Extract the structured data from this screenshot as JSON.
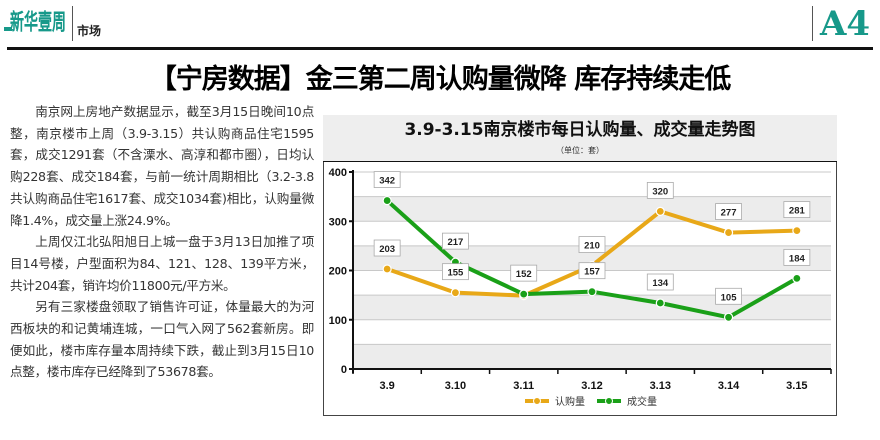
{
  "header": {
    "logo": "新华壹周",
    "section": "市场",
    "page_number": "A4",
    "brand_color": "#17998a"
  },
  "headline": "【宁房数据】金三第二周认购量微降 库存持续走低",
  "article": {
    "paragraphs": [
      "南京网上房地产数据显示，截至3月15日晚间10点整，南京楼市上周（3.9-3.15）共认购商品住宅1595套，成交1291套（不含溧水、高淳和都市圈），日均认购228套、成交184套，与前一统计周期相比（3.2-3.8共认购商品住宅1617套、成交1034套)相比，认购量微降1.4%，成交量上涨24.9%。",
      "上周仅江北弘阳旭日上城一盘于3月13日加推了项目14号楼，户型面积为84、121、128、139平方米，共计204套，销许均价11800元/平方米。",
      "另有三家楼盘领取了销售许可证，体量最大的为河西板块的和记黄埔连城，一口气入网了562套新房。即便如此，楼市库存量本周持续下跌，截止到3月15日10点整，楼市库存已经降到了53678套。"
    ]
  },
  "chart_data": {
    "type": "line",
    "title": "3.9-3.15南京楼市每日认购量、成交量走势图",
    "subtitle": "（单位：套）",
    "categories": [
      "3.9",
      "3.10",
      "3.11",
      "3.12",
      "3.13",
      "3.14",
      "3.15"
    ],
    "series": [
      {
        "name": "认购量",
        "color": "#e8a818",
        "values": [
          203,
          155,
          149,
          210,
          320,
          277,
          281
        ],
        "labels": [
          "203",
          "155",
          "",
          "210",
          "320",
          "277",
          "281"
        ]
      },
      {
        "name": "成交量",
        "color": "#1aa018",
        "values": [
          342,
          217,
          152,
          157,
          134,
          105,
          184
        ],
        "labels": [
          "342",
          "217",
          "152",
          "157",
          "134",
          "105",
          "184"
        ]
      }
    ],
    "ylim": [
      0,
      400
    ],
    "yticks": [
      "0",
      "100",
      "200",
      "300",
      "400"
    ],
    "grid": true,
    "legend": "bottom"
  }
}
